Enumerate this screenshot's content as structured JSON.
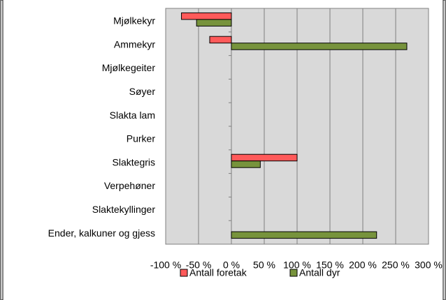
{
  "chart_data": {
    "type": "hbar",
    "categories": [
      "Mjølkekyr",
      "Ammekyr",
      "Mjølkegeiter",
      "Søyer",
      "Slakta lam",
      "Purker",
      "Slaktegris",
      "Verpehøner",
      "Slaktekyllinger",
      "Ender, kalkuner og gjess"
    ],
    "series": [
      {
        "name": "Antall foretak",
        "color": "#ff5a5a",
        "values": [
          -76,
          -33,
          null,
          null,
          null,
          null,
          100,
          null,
          null,
          null
        ]
      },
      {
        "name": "Antall dyr",
        "color": "#77933c",
        "values": [
          -53,
          267,
          null,
          null,
          null,
          null,
          44,
          null,
          null,
          221
        ]
      }
    ],
    "xlim": [
      -100,
      300
    ],
    "xticks": [
      {
        "value": -100,
        "label": "-100 %"
      },
      {
        "value": -50,
        "label": "-50 %"
      },
      {
        "value": 0,
        "label": "0 %"
      },
      {
        "value": 50,
        "label": "50 %"
      },
      {
        "value": 100,
        "label": "100 %"
      },
      {
        "value": 150,
        "label": "150 %"
      },
      {
        "value": 200,
        "label": "200 %"
      },
      {
        "value": 250,
        "label": "250 %"
      },
      {
        "value": 300,
        "label": "300 %"
      }
    ],
    "grid": true,
    "legend": "bottom"
  }
}
